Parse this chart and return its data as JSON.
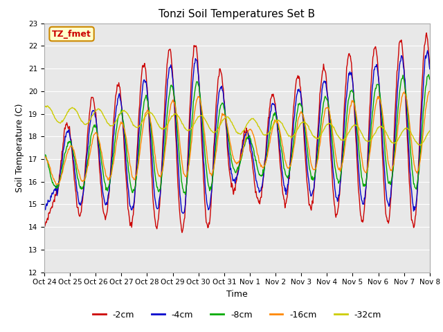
{
  "title": "Tonzi Soil Temperatures Set B",
  "xlabel": "Time",
  "ylabel": "Soil Temperature (C)",
  "ylim": [
    12.0,
    23.0
  ],
  "yticks": [
    12.0,
    13.0,
    14.0,
    15.0,
    16.0,
    17.0,
    18.0,
    19.0,
    20.0,
    21.0,
    22.0,
    23.0
  ],
  "series_colors": [
    "#cc0000",
    "#0000cc",
    "#00aa00",
    "#ff8800",
    "#cccc00"
  ],
  "series_labels": [
    "-2cm",
    "-4cm",
    "-8cm",
    "-16cm",
    "-32cm"
  ],
  "annotation_text": "TZ_fmet",
  "annotation_bg": "#ffffcc",
  "annotation_border": "#cc8800",
  "annotation_text_color": "#cc0000",
  "xtick_labels": [
    "Oct 24",
    "Oct 25",
    "Oct 26",
    "Oct 27",
    "Oct 28",
    "Oct 29",
    "Oct 30",
    "Oct 31",
    "Nov 1",
    "Nov 2",
    "Nov 3",
    "Nov 4",
    "Nov 5",
    "Nov 6",
    "Nov 7",
    "Nov 8"
  ]
}
